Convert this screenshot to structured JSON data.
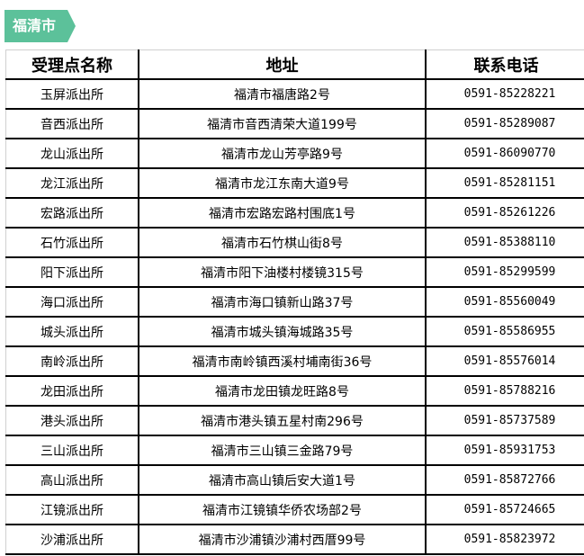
{
  "badge": "福清市",
  "headers": [
    "受理点名称",
    "地址",
    "联系电话"
  ],
  "rows": [
    [
      "玉屏派出所",
      "福清市福唐路2号",
      "0591-85228221"
    ],
    [
      "音西派出所",
      "福清市音西清荣大道199号",
      "0591-85289087"
    ],
    [
      "龙山派出所",
      "福清市龙山芳亭路9号",
      "0591-86090770"
    ],
    [
      "龙江派出所",
      "福清市龙江东南大道9号",
      "0591-85281151"
    ],
    [
      "宏路派出所",
      "福清市宏路宏路村围底1号",
      "0591-85261226"
    ],
    [
      "石竹派出所",
      "福清市石竹棋山街8号",
      "0591-85388110"
    ],
    [
      "阳下派出所",
      "福清市阳下油楼村楼镜315号",
      "0591-85299599"
    ],
    [
      "海口派出所",
      "福清市海口镇新山路37号",
      "0591-85560049"
    ],
    [
      "城头派出所",
      "福清市城头镇海城路35号",
      "0591-85586955"
    ],
    [
      "南岭派出所",
      "福清市南岭镇西溪村埔南街36号",
      "0591-85576014"
    ],
    [
      "龙田派出所",
      "福清市龙田镇龙旺路8号",
      "0591-85788216"
    ],
    [
      "港头派出所",
      "福清市港头镇五星村南296号",
      "0591-85737589"
    ],
    [
      "三山派出所",
      "福清市三山镇三金路79号",
      "0591-85931753"
    ],
    [
      "高山派出所",
      "福清市高山镇后安大道1号",
      "0591-85872766"
    ],
    [
      "江镜派出所",
      "福清市江镜镇华侨农场部2号",
      "0591-85724665"
    ],
    [
      "沙浦派出所",
      "福清市沙浦镇沙浦村西厝99号",
      "0591-85823972"
    ]
  ]
}
